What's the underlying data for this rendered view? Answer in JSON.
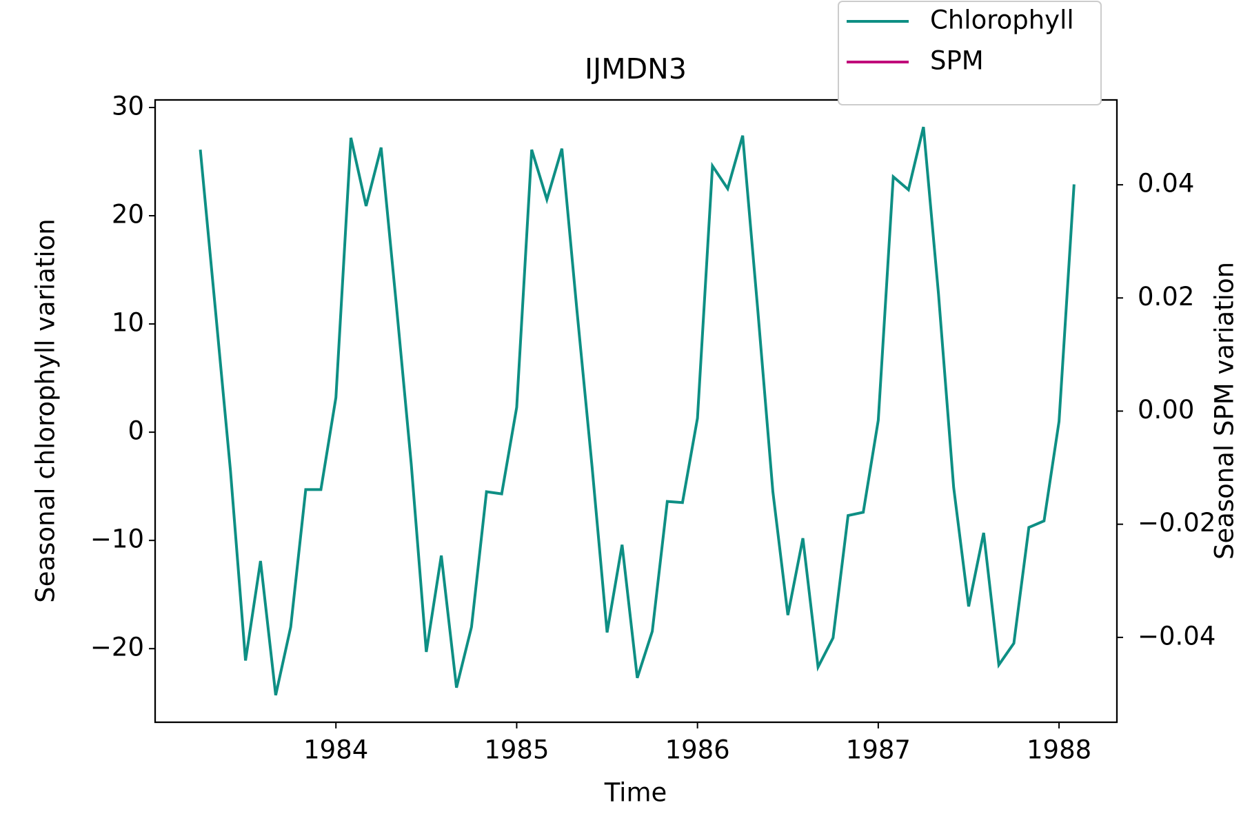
{
  "chart_data": {
    "type": "line",
    "title": "IJMDN3",
    "x_label": "Time",
    "y_label": "Seasonal chlorophyll variation",
    "y2_label": "Seasonal SPM variation",
    "x": [
      1983.25,
      1983.333,
      1983.417,
      1983.5,
      1983.583,
      1983.667,
      1983.75,
      1983.833,
      1983.917,
      1984.0,
      1984.083,
      1984.167,
      1984.25,
      1984.333,
      1984.417,
      1984.5,
      1984.583,
      1984.667,
      1984.75,
      1984.833,
      1984.917,
      1985.0,
      1985.083,
      1985.167,
      1985.25,
      1985.333,
      1985.417,
      1985.5,
      1985.583,
      1985.667,
      1985.75,
      1985.833,
      1985.917,
      1986.0,
      1986.083,
      1986.167,
      1986.25,
      1986.333,
      1986.417,
      1986.5,
      1986.583,
      1986.667,
      1986.75,
      1986.833,
      1986.917,
      1987.0,
      1987.083,
      1987.167,
      1987.25,
      1987.333,
      1987.417,
      1987.5,
      1987.583,
      1987.667,
      1987.75,
      1987.833,
      1987.917,
      1988.0,
      1988.083
    ],
    "series": [
      {
        "name": "Chlorophyll",
        "color": "#0e8f84",
        "values": [
          26.1,
          11.4,
          -3.6,
          -21.1,
          -11.9,
          -24.3,
          -18.0,
          -5.3,
          -5.3,
          3.2,
          27.2,
          20.9,
          26.3,
          12.0,
          -3.0,
          -20.3,
          -11.4,
          -23.6,
          -18.0,
          -5.5,
          -5.7,
          2.3,
          26.1,
          21.5,
          26.2,
          11.3,
          -3.2,
          -18.5,
          -10.4,
          -22.7,
          -18.4,
          -6.4,
          -6.5,
          1.3,
          24.6,
          22.5,
          27.4,
          11.4,
          -5.5,
          -16.9,
          -9.8,
          -21.7,
          -19.0,
          -7.7,
          -7.4,
          1.1,
          23.6,
          22.4,
          28.2,
          12.8,
          -5.1,
          -16.1,
          -9.3,
          -21.5,
          -19.5,
          -8.8,
          -8.2,
          1.0,
          22.9
        ]
      },
      {
        "name": "SPM",
        "color": "#c0087a",
        "axis": "y2",
        "values": [
          null,
          null,
          null,
          null,
          null,
          null,
          null,
          null,
          null,
          null,
          null,
          null,
          null,
          null,
          null,
          null,
          null,
          null,
          null,
          null,
          null,
          null,
          null,
          null,
          null,
          null,
          null,
          null,
          null,
          null,
          null,
          null,
          null,
          null,
          null,
          null,
          null,
          null,
          null,
          null,
          null,
          null,
          null,
          null,
          null,
          null,
          null,
          null,
          null,
          null,
          null,
          null,
          null,
          null,
          null,
          null,
          null,
          null,
          null
        ]
      }
    ],
    "xlim": [
      1983.0,
      1988.32
    ],
    "xticks": [
      1984,
      1985,
      1986,
      1987,
      1988
    ],
    "ylim": [
      -26.8,
      30.7
    ],
    "yticks": [
      {
        "value": -20,
        "label": "−20"
      },
      {
        "value": -10,
        "label": "−10"
      },
      0,
      10,
      20,
      30
    ],
    "y2lim": [
      -0.055,
      0.055
    ],
    "y2ticks": [
      {
        "value": -0.04,
        "label": "−0.04"
      },
      {
        "value": -0.02,
        "label": "−0.02"
      },
      {
        "value": 0,
        "label": "0.00"
      },
      {
        "value": 0.02,
        "label": "0.02"
      },
      {
        "value": 0.04,
        "label": "0.04"
      }
    ],
    "legend": "upper right"
  }
}
